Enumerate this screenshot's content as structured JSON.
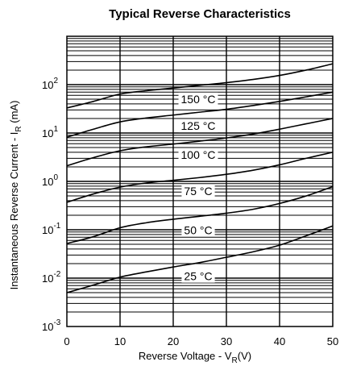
{
  "chart_data": {
    "type": "line",
    "title": "Typical Reverse Characteristics",
    "xlabel": "Reverse Voltage - V",
    "xlabel_subscript": "R",
    "xlabel_unit": "(V)",
    "ylabel": "Instantaneous Reverse Current - I",
    "ylabel_subscript": "R",
    "ylabel_unit": "(mA)",
    "xlim": [
      0,
      50
    ],
    "ylim": [
      0.001,
      1000
    ],
    "yscale": "log",
    "grid": true,
    "x_ticks": [
      "0",
      "10",
      "20",
      "30",
      "40",
      "50"
    ],
    "y_ticks": [
      {
        "base": "10",
        "exp": "-3"
      },
      {
        "base": "10",
        "exp": "-2"
      },
      {
        "base": "10",
        "exp": "-1"
      },
      {
        "base": "10",
        "exp": "0"
      },
      {
        "base": "10",
        "exp": "1"
      },
      {
        "base": "10",
        "exp": "2"
      }
    ],
    "x": [
      0,
      5,
      10,
      15,
      20,
      25,
      30,
      35,
      40,
      45,
      50
    ],
    "series": [
      {
        "name": "25 °C",
        "values": [
          0.005,
          0.0072,
          0.0105,
          0.0135,
          0.017,
          0.021,
          0.027,
          0.035,
          0.048,
          0.075,
          0.12
        ]
      },
      {
        "name": "50 °C",
        "values": [
          0.052,
          0.072,
          0.11,
          0.14,
          0.165,
          0.19,
          0.22,
          0.265,
          0.35,
          0.5,
          0.78
        ]
      },
      {
        "name": "75 °C",
        "values": [
          0.37,
          0.55,
          0.76,
          0.93,
          1.05,
          1.2,
          1.4,
          1.7,
          2.2,
          3.0,
          4.0
        ]
      },
      {
        "name": "100 °C",
        "values": [
          2.1,
          3.1,
          4.3,
          5.2,
          5.9,
          6.8,
          7.9,
          9.5,
          12,
          15.5,
          20
        ]
      },
      {
        "name": "125 °C",
        "values": [
          8.2,
          12,
          17,
          20.5,
          23.5,
          27,
          31,
          37,
          45,
          56,
          70
        ]
      },
      {
        "name": "150 °C",
        "values": [
          33,
          45,
          64,
          75,
          85,
          97,
          110,
          128,
          155,
          200,
          270
        ]
      }
    ]
  }
}
